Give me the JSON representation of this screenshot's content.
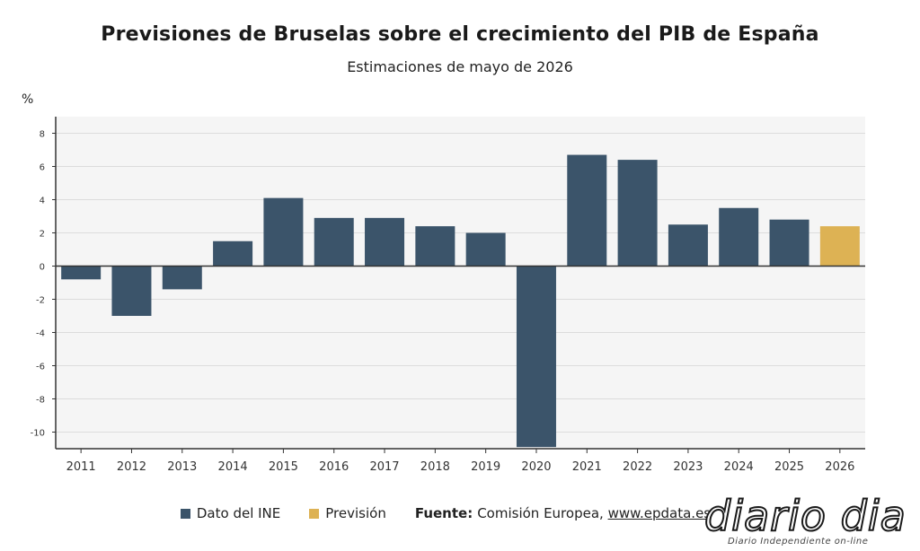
{
  "title": "Previsiones de Bruselas sobre el crecimiento del PIB de España",
  "subtitle": "Estimaciones de mayo de 2026",
  "unit_label": "%",
  "legend": [
    {
      "label": "Dato del INE",
      "color": "#3b546a"
    },
    {
      "label": "Previsión",
      "color": "#ddb254"
    }
  ],
  "source": {
    "label": "Fuente:",
    "text": "Comisión Europea,",
    "link": "www.epdata.es"
  },
  "logo": {
    "name": "diario dia",
    "tagline": "Diario Independiente on-line"
  },
  "colors": {
    "actual": "#3b546a",
    "forecast": "#ddb254",
    "plot_bg": "#f5f5f5",
    "grid": "#dcdcdc"
  },
  "chart_data": {
    "type": "bar",
    "categories": [
      "2011",
      "2012",
      "2013",
      "2014",
      "2015",
      "2016",
      "2017",
      "2018",
      "2019",
      "2020",
      "2021",
      "2022",
      "2023",
      "2024",
      "2025",
      "2026"
    ],
    "series": [
      {
        "name": "Dato del INE",
        "values": [
          -0.8,
          -3.0,
          -1.4,
          1.5,
          4.1,
          2.9,
          2.9,
          2.4,
          2.0,
          -10.9,
          6.7,
          6.4,
          2.5,
          3.5,
          2.8,
          null
        ]
      },
      {
        "name": "Previsión",
        "values": [
          null,
          null,
          null,
          null,
          null,
          null,
          null,
          null,
          null,
          null,
          null,
          null,
          null,
          null,
          null,
          2.4
        ]
      }
    ],
    "y_ticks": [
      8,
      6,
      4,
      2,
      0,
      -2,
      -4,
      -6,
      -8,
      -10
    ],
    "ylim": [
      -11,
      9
    ],
    "grid": true,
    "legend_position": "bottom"
  }
}
